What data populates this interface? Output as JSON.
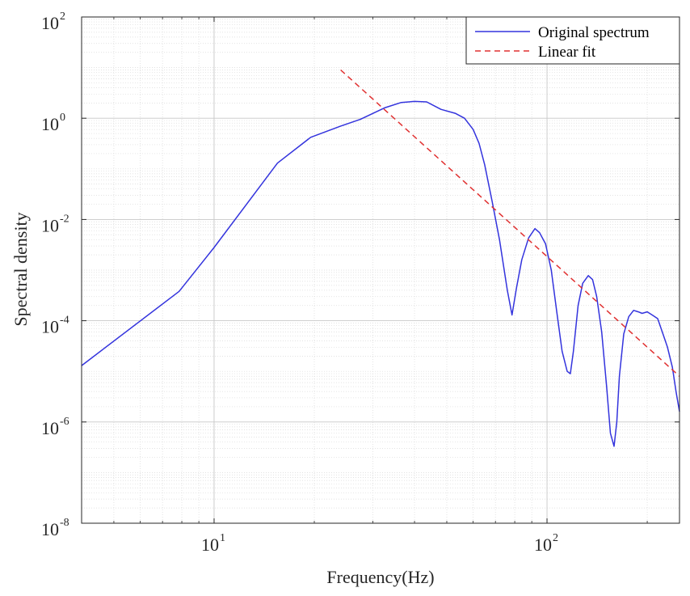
{
  "chart_data": {
    "type": "line",
    "title": "",
    "xlabel": "Frequency(Hz)",
    "ylabel": "Spectral density",
    "xscale": "log",
    "yscale": "log",
    "xlim": [
      4,
      250
    ],
    "ylim": [
      1e-08,
      100
    ],
    "grid": true,
    "minor_grid": true,
    "legend_position": "top-right",
    "x_ticks": [
      {
        "base": "10",
        "exp": "1",
        "value": 10
      },
      {
        "base": "10",
        "exp": "2",
        "value": 100
      }
    ],
    "y_ticks": [
      {
        "base": "10",
        "exp": "-8",
        "value": 1e-08
      },
      {
        "base": "10",
        "exp": "-6",
        "value": 1e-06
      },
      {
        "base": "10",
        "exp": "-4",
        "value": 0.0001
      },
      {
        "base": "10",
        "exp": "-2",
        "value": 0.01
      },
      {
        "base": "10",
        "exp": "0",
        "value": 1
      },
      {
        "base": "10",
        "exp": "2",
        "value": 100
      }
    ],
    "series": [
      {
        "name": "Original spectrum",
        "color": "#3333dd",
        "style": "solid",
        "x": [
          4.0,
          7.85,
          10.0,
          15.5,
          19.5,
          24.0,
          27.5,
          32.5,
          36.5,
          40.0,
          43.5,
          48.0,
          53.0,
          56.5,
          60.0,
          62.5,
          65.0,
          68.5,
          72.0,
          76.0,
          78.5,
          81.0,
          84.0,
          88.0,
          92.0,
          95.0,
          99.0,
          103.0,
          107.0,
          111.0,
          115.0,
          117.5,
          120.0,
          124.0,
          128.0,
          133.0,
          137.0,
          141.0,
          146.0,
          151.0,
          155.0,
          159.0,
          162.0,
          165.0,
          170.0,
          176.0,
          182.0,
          188.0,
          193.0,
          200.0,
          207.0,
          215.0,
          222.0,
          230.0,
          238.0,
          244.0,
          250.0
        ],
        "y": [
          1.3e-05,
          0.00038,
          0.0028,
          0.13,
          0.42,
          0.7,
          0.95,
          1.6,
          2.05,
          2.15,
          2.1,
          1.5,
          1.25,
          1.0,
          0.6,
          0.32,
          0.12,
          0.022,
          0.004,
          0.0004,
          0.00013,
          0.00045,
          0.0016,
          0.0043,
          0.0066,
          0.0055,
          0.0033,
          0.001,
          0.00015,
          2.5e-05,
          1e-05,
          9e-06,
          2.5e-05,
          0.0002,
          0.00055,
          0.00078,
          0.00065,
          0.0003,
          6e-05,
          5e-06,
          6e-07,
          3.3e-07,
          1e-06,
          8e-06,
          5.5e-05,
          0.00012,
          0.00016,
          0.00015,
          0.00014,
          0.00015,
          0.00013,
          0.00011,
          6e-05,
          3e-05,
          1.2e-05,
          4e-06,
          1.6e-06
        ]
      },
      {
        "name": "Linear fit",
        "color": "#e03030",
        "style": "dashed",
        "x": [
          24.0,
          250.0
        ],
        "y": [
          9.0,
          8e-06
        ]
      }
    ]
  }
}
